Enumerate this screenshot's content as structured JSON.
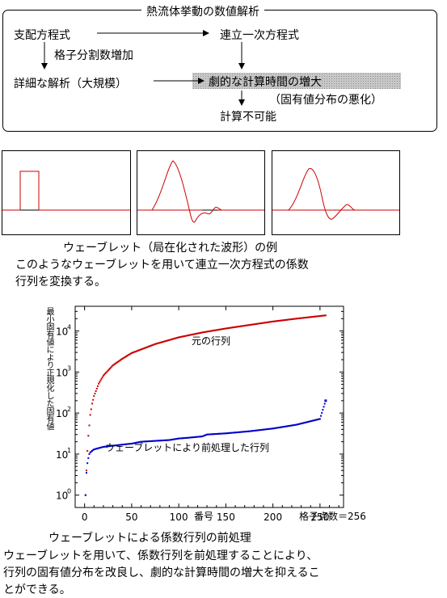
{
  "flow": {
    "title": "熱流体挙動の数値解析",
    "governing_eq": "支配方程式",
    "linear_eq": "連立一次方程式",
    "grid_refine": "格子分割数増加",
    "detailed": "詳細な解析（大規模）",
    "dramatic": "劇的な計算時間の増大",
    "eigen_worse": "（固有値分布の悪化）",
    "impossible": "計算不可能"
  },
  "wavelet_section": {
    "caption": "ウェーブレット（局在化された波形）の例",
    "desc_line1": "このようなウェーブレットを用いて連立一次方程式の係数",
    "desc_line2": "行列を変換する。"
  },
  "chart": {
    "ylabel": "最小固有値により正規化した固有値",
    "xlabel": "番号",
    "grid_note": "格子点数＝256",
    "x_ticks": [
      "0",
      "50",
      "100",
      "150",
      "200",
      "250"
    ],
    "y_ticks": [
      "10",
      "10",
      "10",
      "10",
      "10"
    ],
    "y_exps": [
      "0",
      "1",
      "2",
      "3",
      "4"
    ],
    "label_original": "元の行列",
    "label_preconditioned": "ウェーブレットにより前処理した行列",
    "colors": {
      "original": "#cc0000",
      "preconditioned": "#0000cc",
      "wave": "#cc0000"
    }
  },
  "chart_data": {
    "type": "scatter",
    "y_scale": "log",
    "xlim": [
      -10,
      275
    ],
    "ylim": [
      0.5,
      40000
    ],
    "series": [
      {
        "name": "元の行列",
        "x": [
          1,
          2,
          3,
          4,
          5,
          6,
          8,
          10,
          15,
          20,
          30,
          40,
          50,
          75,
          100,
          125,
          150,
          175,
          200,
          225,
          256
        ],
        "y": [
          1,
          4,
          12,
          28,
          50,
          90,
          170,
          260,
          520,
          820,
          1450,
          2100,
          2900,
          4800,
          7000,
          9200,
          11500,
          14000,
          17000,
          20000,
          24000
        ]
      },
      {
        "name": "ウェーブレットにより前処理した行列",
        "x": [
          1,
          2,
          3,
          4,
          5,
          6,
          8,
          10,
          15,
          20,
          30,
          40,
          50,
          60,
          75,
          90,
          100,
          110,
          125,
          130,
          150,
          175,
          200,
          225,
          250,
          256
        ],
        "y": [
          1,
          3.5,
          6,
          8,
          10,
          11,
          12,
          13,
          14,
          15,
          16,
          17,
          18,
          20,
          21,
          22,
          24,
          25,
          27,
          30,
          32,
          36,
          42,
          52,
          72,
          200
        ]
      }
    ]
  },
  "bottom": {
    "caption": "ウェーブレットによる係数行列の前処理",
    "line1": "ウェーブレットを用いて、係数行列を前処理することにより、",
    "line2": "行列の固有値分布を改良し、劇的な計算時間の増大を抑えるこ",
    "line3": "とができる。"
  }
}
